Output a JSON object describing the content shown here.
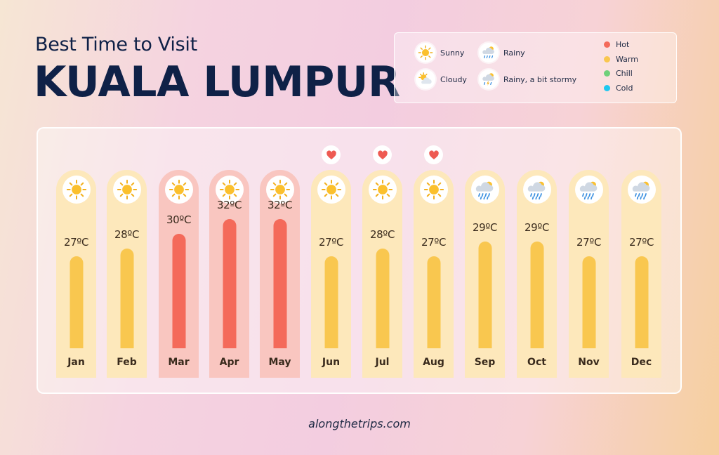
{
  "header": {
    "subtitle": "Best Time to Visit",
    "title": "KUALA LUMPUR"
  },
  "legend": {
    "weather": [
      {
        "label": "Sunny",
        "icon": "sun-icon"
      },
      {
        "label": "Cloudy",
        "icon": "cloudy-icon"
      },
      {
        "label": "Rainy",
        "icon": "rain-icon"
      },
      {
        "label": "Rainy, a bit stormy",
        "icon": "storm-icon"
      }
    ],
    "temperature": [
      {
        "label": "Hot",
        "color": "#f46a5a"
      },
      {
        "label": "Warm",
        "color": "#f9c74f"
      },
      {
        "label": "Chill",
        "color": "#6fd07a"
      },
      {
        "label": "Cold",
        "color": "#1ec8f0"
      }
    ]
  },
  "chart_data": {
    "type": "bar",
    "categories": [
      "Jan",
      "Feb",
      "Mar",
      "Apr",
      "May",
      "Jun",
      "Jul",
      "Aug",
      "Sep",
      "Oct",
      "Nov",
      "Dec"
    ],
    "values": [
      27,
      28,
      30,
      32,
      32,
      27,
      28,
      27,
      29,
      29,
      27,
      27
    ],
    "value_labels": [
      "27ºC",
      "28ºC",
      "30ºC",
      "32ºC",
      "32ºC",
      "27ºC",
      "28ºC",
      "27ºC",
      "29ºC",
      "29ºC",
      "27ºC",
      "27ºC"
    ],
    "weather": [
      "sunny",
      "sunny",
      "sunny",
      "sunny",
      "sunny",
      "sunny",
      "sunny",
      "sunny",
      "rainy",
      "rainy",
      "rainy",
      "rainy"
    ],
    "category": [
      "warm",
      "warm",
      "hot",
      "hot",
      "hot",
      "warm",
      "warm",
      "warm",
      "warm",
      "warm",
      "warm",
      "warm"
    ],
    "favorite": [
      false,
      false,
      false,
      false,
      false,
      true,
      true,
      true,
      false,
      false,
      false,
      false
    ],
    "colors": {
      "hot": "#f46a5a",
      "warm": "#f9c74f",
      "hot_bg": "#f9c6c0",
      "warm_bg": "#fde8bb"
    }
  },
  "footer": {
    "site": "alongthetrips.com"
  }
}
